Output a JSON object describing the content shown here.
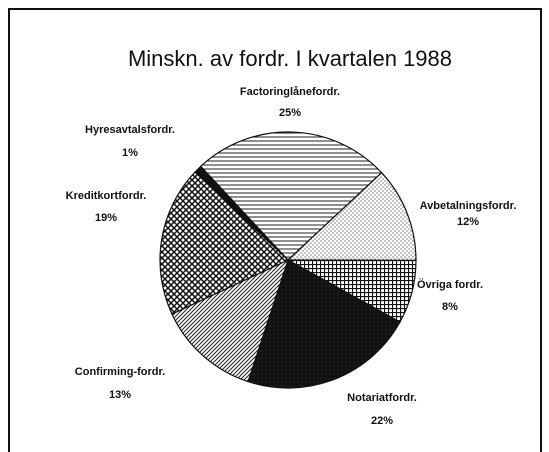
{
  "chart_data": {
    "type": "pie",
    "title": "Minskn. av fordr. I kvartalen 1988",
    "categories": [
      "Factoringlånefordr.",
      "Avbetalningsfordr.",
      "Övriga fordr.",
      "Notariatfordr.",
      "Confirming-fordr.",
      "Kreditkortfordr.",
      "Hyresavtalsfordr."
    ],
    "values": [
      25,
      12,
      8,
      22,
      13,
      19,
      1
    ],
    "value_labels": [
      "25%",
      "12%",
      "8%",
      "22%",
      "13%",
      "19%",
      "1%"
    ]
  }
}
